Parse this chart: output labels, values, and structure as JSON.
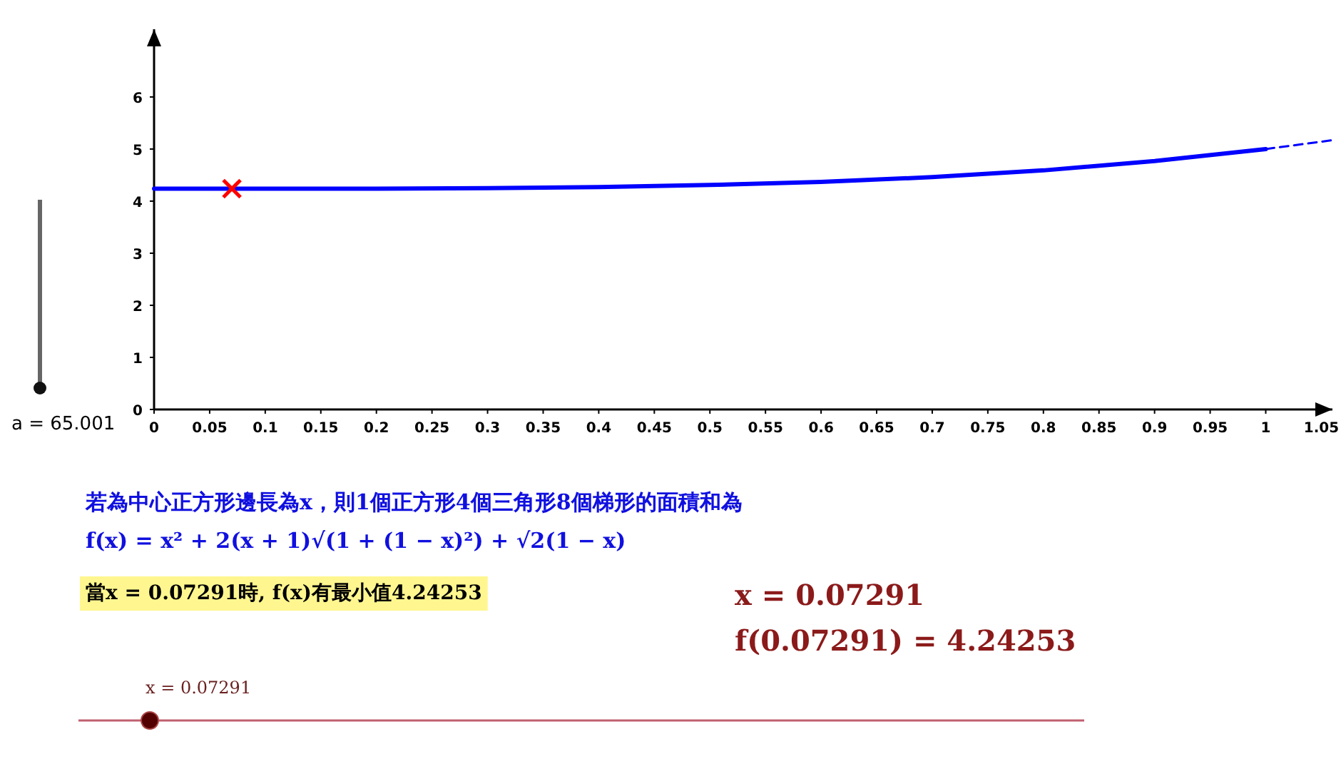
{
  "chart_data": {
    "type": "line",
    "xlim": [
      0,
      1.06
    ],
    "ylim": [
      0,
      7.3
    ],
    "xticks": [
      0,
      0.05,
      0.1,
      0.15,
      0.2,
      0.25,
      0.3,
      0.35,
      0.4,
      0.45,
      0.5,
      0.55,
      0.6,
      0.65,
      0.7,
      0.75,
      0.8,
      0.85,
      0.9,
      0.95,
      1,
      1.05
    ],
    "yticks": [
      0,
      1,
      2,
      3,
      4,
      5,
      6
    ],
    "grid": false,
    "series": [
      {
        "color": "#0000ff",
        "line_style": "solid",
        "x": [
          0,
          0.1,
          0.2,
          0.3,
          0.4,
          0.5,
          0.6,
          0.7,
          0.8,
          0.9,
          1
        ],
        "values": [
          4.24,
          4.24,
          4.24,
          4.25,
          4.27,
          4.31,
          4.37,
          4.46,
          4.59,
          4.77,
          5.0
        ]
      },
      {
        "color": "#0000ff",
        "line_style": "dashed",
        "x": [
          1,
          1.06
        ],
        "values": [
          5.0,
          5.17
        ]
      },
      {
        "type": "scatter",
        "marker": "cross",
        "color": "#ff0000",
        "x": [
          0.07
        ],
        "values": [
          4.24
        ]
      }
    ],
    "annotations": [
      "a = 65.001",
      "若為中心正方形邊長為x，則1個正方形4個三角形8個梯形的面積和為",
      "f(x) = x² + 2(x + 1)√(1 + (1 − x)²) + √2(1 − x)",
      "當x = 0.07291時, f(x)有最小值4.24253",
      "x = 0.07291",
      "f(0.07291) = 4.24253",
      "x = 0.07291"
    ]
  }
}
